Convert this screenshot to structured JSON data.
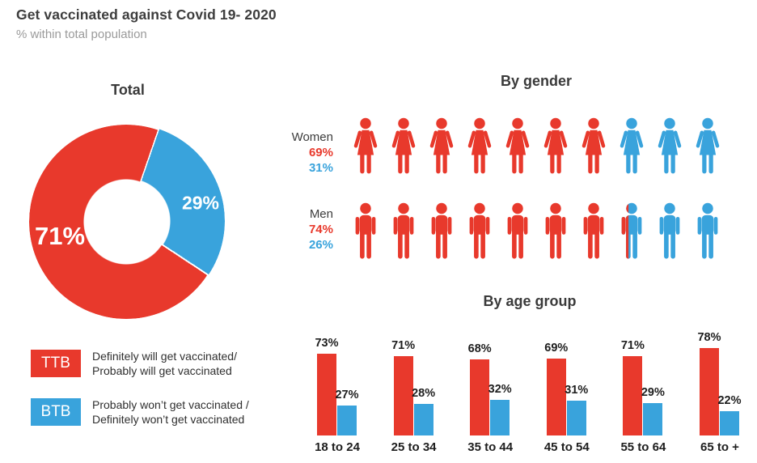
{
  "header": {
    "title": "Get vaccinated against Covid 19- 2020",
    "subtitle": "% within total population"
  },
  "colors": {
    "red": "#E8392C",
    "blue": "#39A3DC",
    "text_dark": "#3c3c3c"
  },
  "legend": [
    {
      "key": "TTB",
      "color_name": "red",
      "line1": "Definitely will get vaccinated/",
      "line2": "Probably will get vaccinated"
    },
    {
      "key": "BTB",
      "color_name": "blue",
      "line1": "Probably won’t get vaccinated /",
      "line2": "Definitely won’t get vaccinated"
    }
  ],
  "chart_data": [
    {
      "type": "pie",
      "title": "Total",
      "labels": [
        "TTB",
        "BTB"
      ],
      "values": [
        71,
        29
      ],
      "colors": [
        "#E8392C",
        "#39A3DC"
      ],
      "donut": true,
      "rotation_deg": 19,
      "value_suffix": "%"
    },
    {
      "type": "pictogram",
      "title": "By gender",
      "rows": [
        {
          "label": "Women",
          "icon": "woman",
          "ttb_pct": 69,
          "btb_pct": 31,
          "total_icons": 10,
          "red_icons": 7,
          "partial_red_fraction": 0,
          "blue_icons": 3
        },
        {
          "label": "Men",
          "icon": "man",
          "ttb_pct": 74,
          "btb_pct": 26,
          "total_icons": 10,
          "red_icons": 7,
          "partial_red_fraction": 0.4,
          "blue_icons": 2
        }
      ],
      "value_suffix": "%"
    },
    {
      "type": "bar",
      "title": "By age group",
      "categories": [
        "18 to 24",
        "25 to 34",
        "35 to 44",
        "45 to 54",
        "55 to 64",
        "65 to +"
      ],
      "series": [
        {
          "name": "TTB",
          "values": [
            73,
            71,
            68,
            69,
            71,
            78
          ]
        },
        {
          "name": "BTB",
          "values": [
            27,
            28,
            32,
            31,
            29,
            22
          ]
        }
      ],
      "ylim": [
        0,
        100
      ],
      "value_suffix": "%",
      "grid": false,
      "legend_position": "none"
    }
  ]
}
